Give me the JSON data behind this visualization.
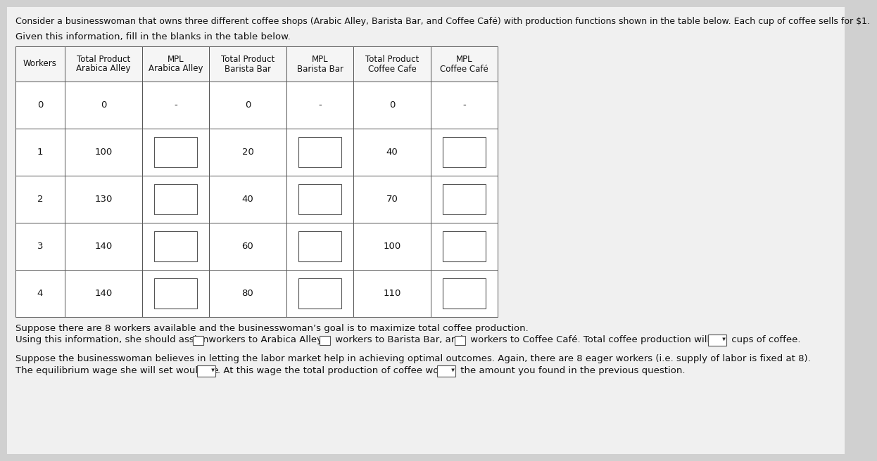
{
  "title_line1": "Consider a businesswoman that owns three different coffee shops (Arabic Alley, Barista Bar, and Coffee Café) with production functions shown in the table below. Each cup of coffee sells for $1.",
  "subtitle": "Given this information, fill in the blanks in the table below.",
  "col_headers_line1": [
    "Workers",
    "Total Product",
    "MPL",
    "Total Product",
    "MPL",
    "Total Product",
    "MPL"
  ],
  "col_headers_line2": [
    "",
    "Arabica Alley",
    "Arabica Alley",
    "Barista Bar",
    "Barista Bar",
    "Coffee Cafe",
    "Coffee Café"
  ],
  "workers": [
    0,
    1,
    2,
    3,
    4
  ],
  "tp_arabica": [
    "0",
    "100",
    "130",
    "140",
    "140"
  ],
  "tp_barista": [
    "0",
    "20",
    "40",
    "60",
    "80"
  ],
  "tp_coffee": [
    "0",
    "40",
    "70",
    "100",
    "110"
  ],
  "para1": "Suppose there are 8 workers available and the businesswoman’s goal is to maximize total coffee production.",
  "para2_pre": "Using this information, she should assign ",
  "para2_mid1": " workers to Arabica Alley, ",
  "para2_mid2": " workers to Barista Bar, and ",
  "para2_mid3": " workers to Coffee Café. Total coffee production will be ",
  "para2_post": " cups of coffee.",
  "para3": "Suppose the businesswoman believes in letting the labor market help in achieving optimal outcomes. Again, there are 8 eager workers (i.e. supply of labor is fixed at 8).",
  "para4_pre": "The equilibrium wage she will set would be ",
  "para4_mid": ". At this wage the total production of coffee would ",
  "para4_post": " the amount you found in the previous question.",
  "bg_color": "#d8d8d8",
  "table_bg": "#ffffff",
  "text_color": "#111111",
  "font_size": 9.5,
  "title_font_size": 9.0
}
